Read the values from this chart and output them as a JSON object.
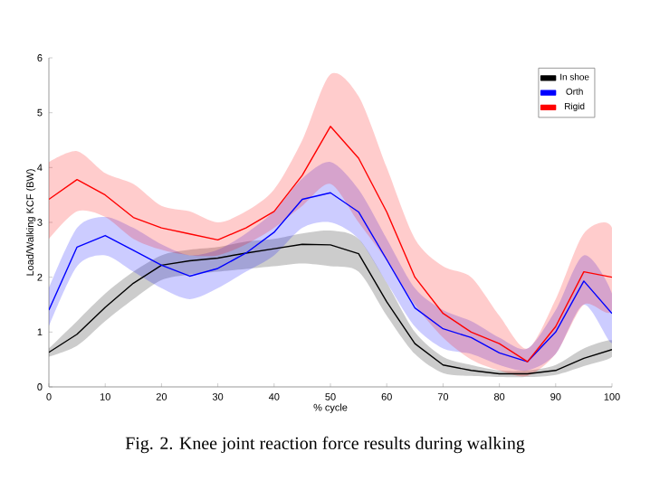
{
  "chart_data": {
    "type": "line",
    "ylabel": "Load/Walking KCF (BW)",
    "xlabel": "% cycle",
    "annotations": [
      "Fig. 2. Knee joint reaction force results during walking"
    ],
    "x": [
      0,
      5,
      10,
      15,
      20,
      25,
      30,
      35,
      40,
      45,
      50,
      55,
      60,
      65,
      70,
      75,
      80,
      85,
      90,
      95,
      100
    ],
    "series": [
      {
        "name": "In shoe",
        "color": "#000000",
        "values": [
          0.63,
          0.96,
          1.45,
          1.89,
          2.22,
          2.3,
          2.35,
          2.44,
          2.52,
          2.6,
          2.59,
          2.43,
          1.55,
          0.79,
          0.4,
          0.3,
          0.24,
          0.24,
          0.3,
          0.52,
          0.68
        ],
        "lower": [
          0.55,
          0.75,
          1.2,
          1.6,
          1.95,
          2.05,
          2.1,
          2.15,
          2.2,
          2.25,
          2.2,
          2.1,
          1.3,
          0.6,
          0.25,
          0.2,
          0.18,
          0.18,
          0.22,
          0.38,
          0.55
        ],
        "upper": [
          0.7,
          1.2,
          1.7,
          2.1,
          2.4,
          2.5,
          2.55,
          2.65,
          2.7,
          2.8,
          2.85,
          2.7,
          1.9,
          1.0,
          0.55,
          0.4,
          0.3,
          0.3,
          0.4,
          0.7,
          0.85
        ]
      },
      {
        "name": "Orth",
        "color": "#0000ff",
        "values": [
          1.4,
          2.55,
          2.76,
          2.49,
          2.22,
          2.02,
          2.16,
          2.44,
          2.82,
          3.42,
          3.54,
          3.19,
          2.32,
          1.44,
          1.06,
          0.9,
          0.62,
          0.46,
          1.0,
          1.93,
          1.34
        ],
        "lower": [
          1.1,
          2.2,
          2.4,
          2.1,
          1.8,
          1.6,
          1.8,
          2.1,
          2.4,
          2.9,
          3.0,
          2.7,
          1.9,
          1.1,
          0.7,
          0.6,
          0.4,
          0.3,
          0.6,
          1.5,
          0.8
        ],
        "upper": [
          1.8,
          2.9,
          3.1,
          2.9,
          2.6,
          2.4,
          2.5,
          2.8,
          3.2,
          3.8,
          4.1,
          3.6,
          2.7,
          1.8,
          1.4,
          1.2,
          0.9,
          0.7,
          1.4,
          2.4,
          1.7
        ]
      },
      {
        "name": "Rigid",
        "color": "#ff0000",
        "values": [
          3.42,
          3.78,
          3.5,
          3.09,
          2.9,
          2.79,
          2.68,
          2.9,
          3.2,
          3.86,
          4.75,
          4.17,
          3.19,
          2.0,
          1.34,
          1.0,
          0.79,
          0.46,
          1.1,
          2.1,
          2.0
        ],
        "lower": [
          2.7,
          3.2,
          3.1,
          2.7,
          2.5,
          2.4,
          2.4,
          2.6,
          2.9,
          3.3,
          3.7,
          3.0,
          2.3,
          1.5,
          0.9,
          0.5,
          0.3,
          0.2,
          0.6,
          1.5,
          1.4
        ],
        "upper": [
          4.1,
          4.3,
          3.9,
          3.7,
          3.3,
          3.2,
          3.0,
          3.2,
          3.6,
          4.5,
          5.7,
          5.3,
          4.0,
          2.7,
          2.2,
          2.0,
          1.3,
          0.7,
          1.6,
          2.8,
          2.9
        ]
      }
    ],
    "xlim": [
      0,
      100
    ],
    "ylim": [
      0,
      6
    ],
    "xticks": [
      0,
      10,
      20,
      30,
      40,
      50,
      60,
      70,
      80,
      90,
      100
    ],
    "yticks": [
      0,
      1,
      2,
      3,
      4,
      5,
      6
    ],
    "grid": false,
    "legend": "top right",
    "marker": "none",
    "line_style": "solid"
  }
}
